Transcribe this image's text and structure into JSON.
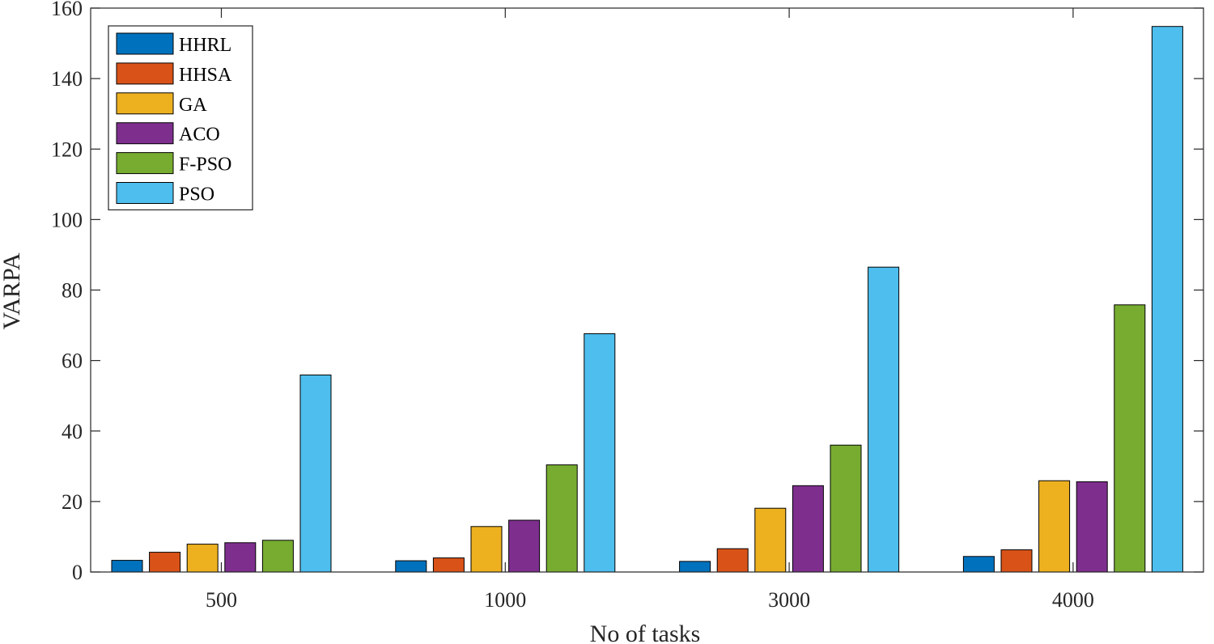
{
  "chart_data": {
    "type": "bar",
    "title": "",
    "xlabel": "No of tasks",
    "ylabel": "VARPA",
    "categories": [
      "500",
      "1000",
      "3000",
      "4000"
    ],
    "ylim": [
      0,
      160
    ],
    "yticks": [
      0,
      20,
      40,
      60,
      80,
      100,
      120,
      140,
      160
    ],
    "grid": false,
    "legend_position": "top-left",
    "series": [
      {
        "name": "HHRL",
        "color": "#0072BD",
        "values": [
          3.3,
          3.2,
          3.0,
          4.4
        ]
      },
      {
        "name": "HHSA",
        "color": "#D95319",
        "values": [
          5.6,
          4.0,
          6.6,
          6.3
        ]
      },
      {
        "name": "GA",
        "color": "#EDB120",
        "values": [
          7.9,
          12.9,
          18.1,
          25.9
        ]
      },
      {
        "name": "ACO",
        "color": "#7E2F8E",
        "values": [
          8.3,
          14.7,
          24.5,
          25.6
        ]
      },
      {
        "name": "F-PSO",
        "color": "#77AC30",
        "values": [
          9.0,
          30.4,
          36.0,
          75.8
        ]
      },
      {
        "name": "PSO",
        "color": "#4DBEEE",
        "values": [
          55.9,
          67.6,
          86.5,
          154.8
        ]
      }
    ]
  }
}
